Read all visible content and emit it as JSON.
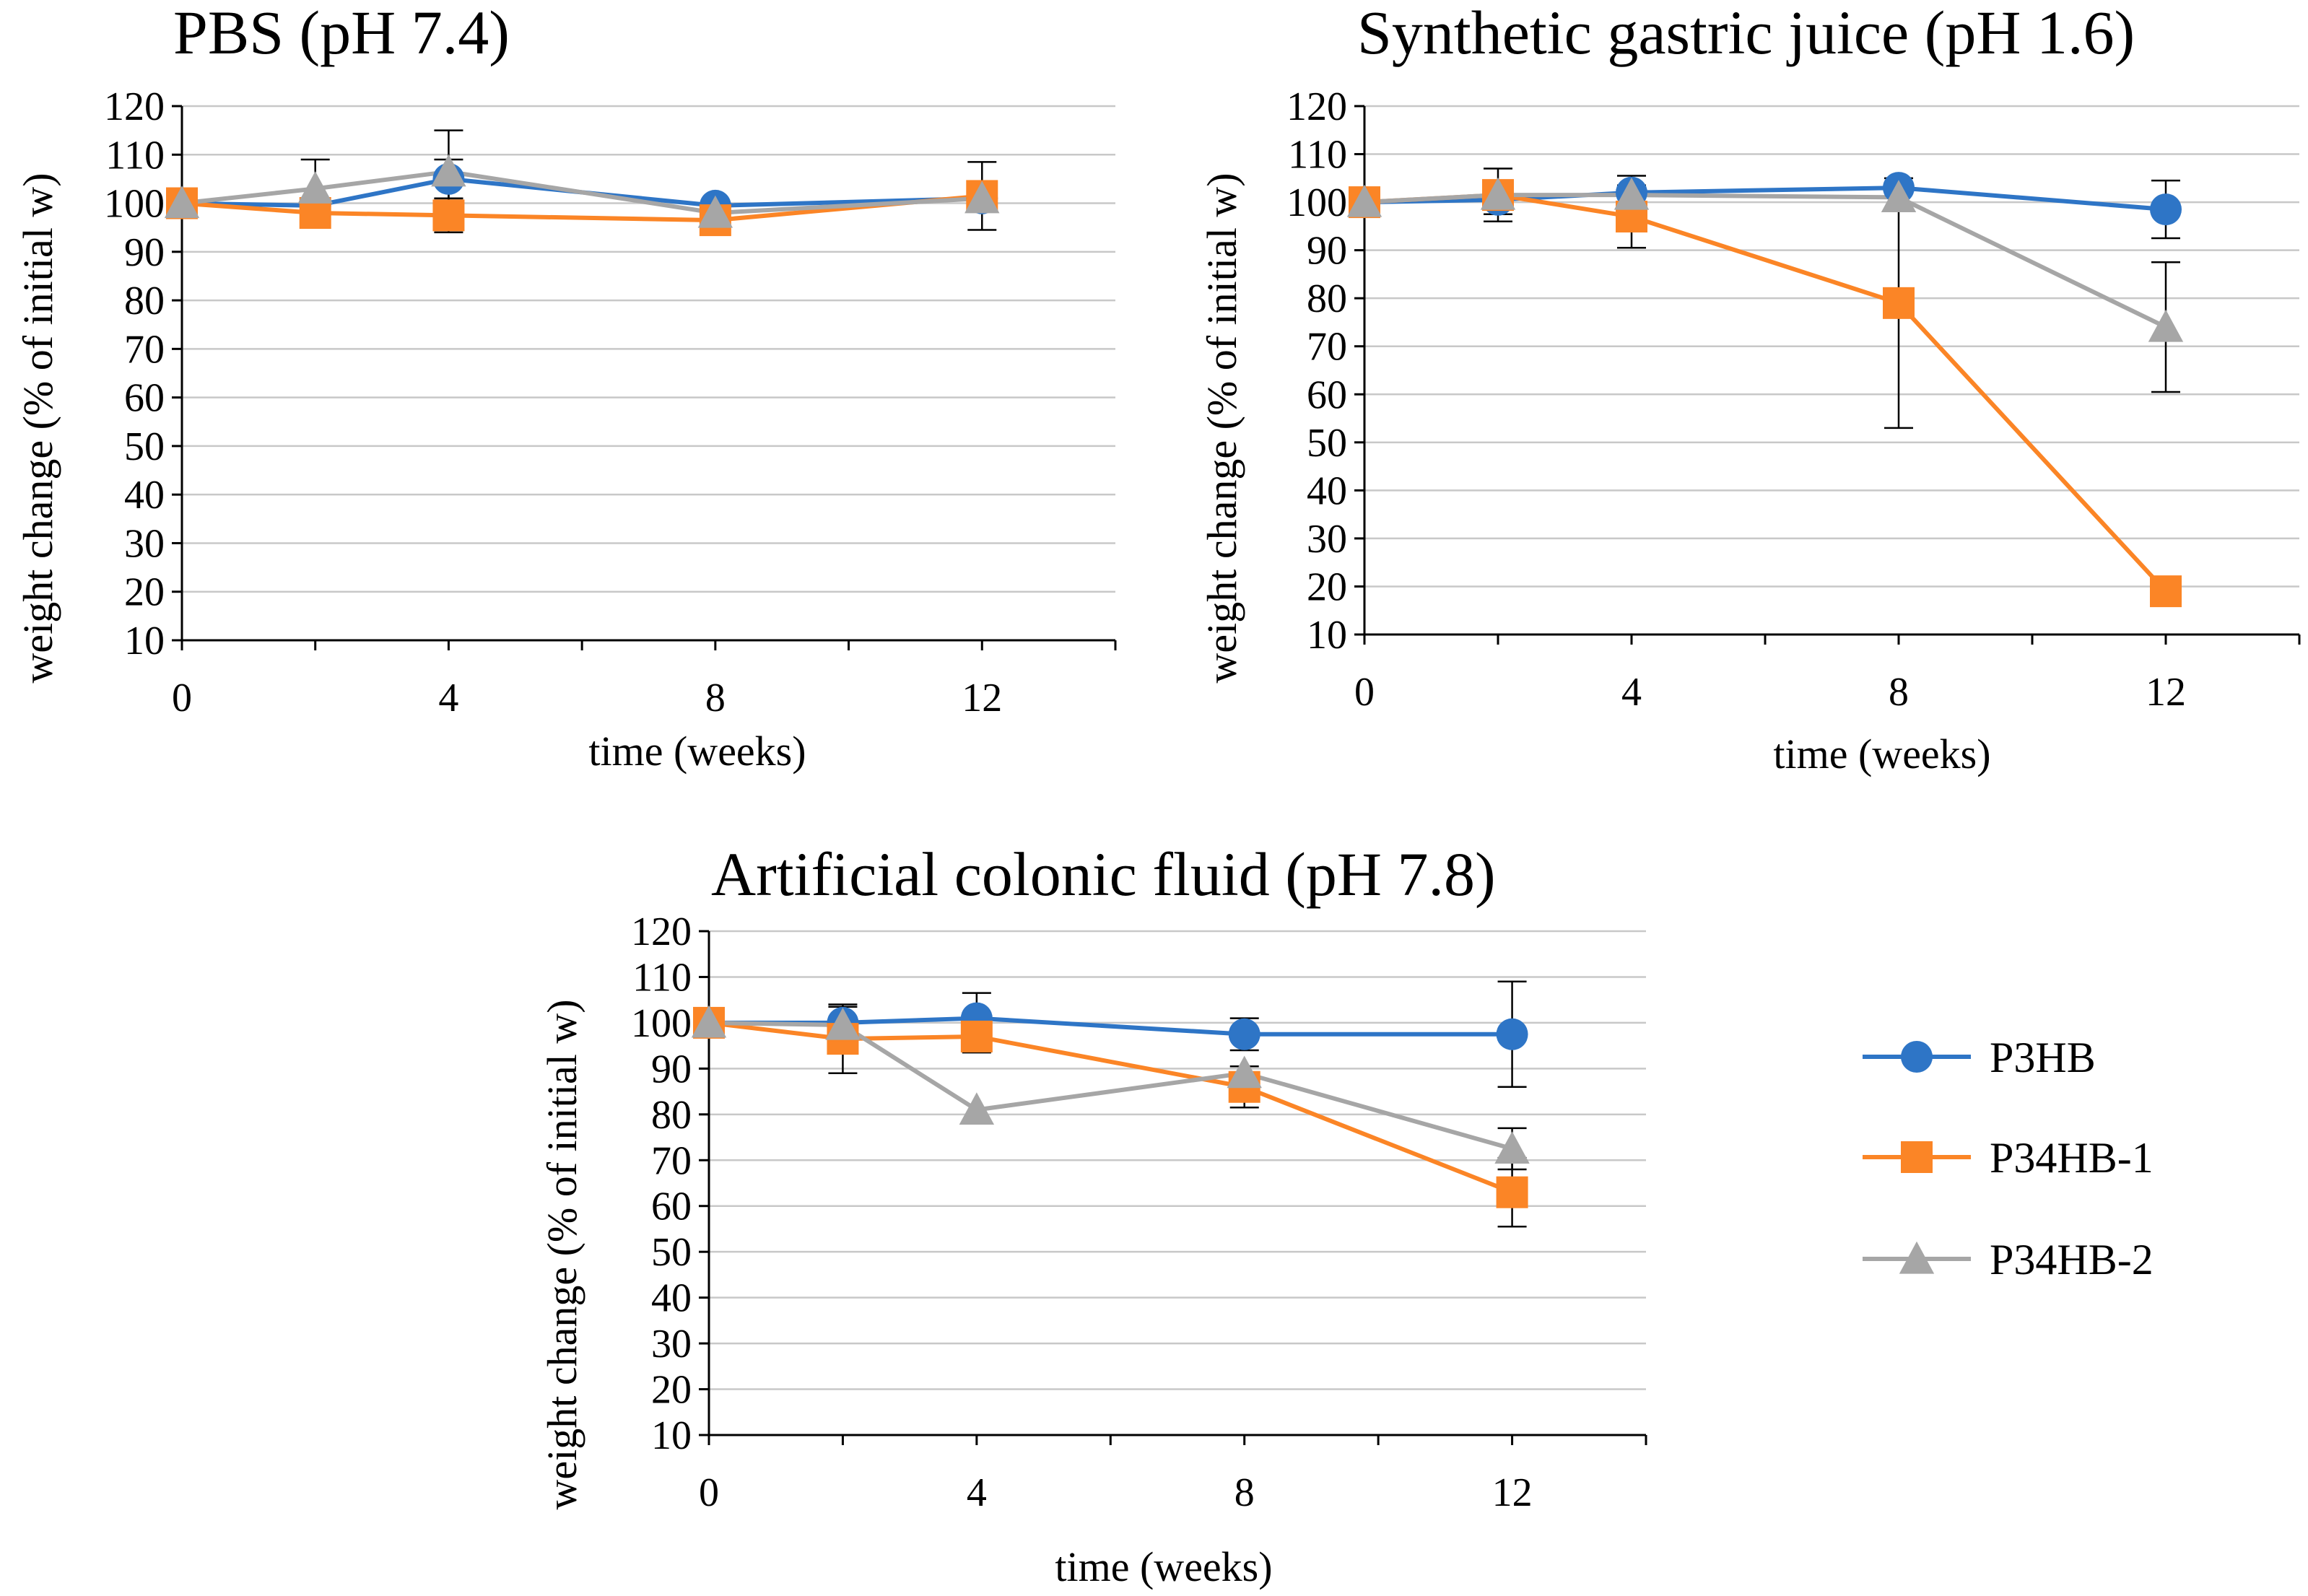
{
  "series_styles": [
    {
      "name": "P3HB",
      "color": "#2E75C6",
      "marker": "circle"
    },
    {
      "name": "P34HB-1",
      "color": "#FB8526",
      "marker": "square"
    },
    {
      "name": "P34HB-2",
      "color": "#A6A6A6",
      "marker": "triangle"
    }
  ],
  "legend": {
    "items": [
      "P3HB",
      "P34HB-1",
      "P34HB-2"
    ]
  },
  "chart_data": [
    {
      "type": "line",
      "title": "PBS (pH 7.4)",
      "xlabel": "time (weeks)",
      "ylabel": "weight change (% of initial w)",
      "xlim": [
        0,
        14
      ],
      "ylim": [
        10,
        120
      ],
      "xticks": [
        0,
        4,
        8,
        12
      ],
      "yticks": [
        10,
        20,
        30,
        40,
        50,
        60,
        70,
        80,
        90,
        100,
        110,
        120
      ],
      "grid": true,
      "series": [
        {
          "name": "P3HB",
          "x": [
            0,
            2,
            4,
            8,
            12
          ],
          "y": [
            100,
            99.5,
            105,
            99.5,
            101
          ],
          "err": [
            0,
            0,
            4,
            0,
            0
          ]
        },
        {
          "name": "P34HB-1",
          "x": [
            0,
            2,
            4,
            8,
            12
          ],
          "y": [
            100,
            98,
            97.5,
            96.5,
            101.5
          ],
          "err": [
            0,
            0,
            3.5,
            0,
            7
          ]
        },
        {
          "name": "P34HB-2",
          "x": [
            0,
            2,
            4,
            8,
            12
          ],
          "y": [
            100,
            103,
            106.5,
            98,
            101
          ],
          "err": [
            0,
            6,
            8.5,
            0,
            0
          ]
        }
      ]
    },
    {
      "type": "line",
      "title": "Synthetic gastric juice (pH 1.6)",
      "xlabel": "time (weeks)",
      "ylabel": "weight change (% of initial w)",
      "xlim": [
        0,
        14
      ],
      "ylim": [
        10,
        120
      ],
      "xticks": [
        0,
        4,
        8,
        12
      ],
      "yticks": [
        10,
        20,
        30,
        40,
        50,
        60,
        70,
        80,
        90,
        100,
        110,
        120
      ],
      "grid": true,
      "series": [
        {
          "name": "P3HB",
          "x": [
            0,
            2,
            4,
            8,
            12
          ],
          "y": [
            100,
            100.5,
            102,
            103,
            98.5
          ],
          "err": [
            0,
            3,
            3.5,
            0,
            6
          ]
        },
        {
          "name": "P34HB-1",
          "x": [
            0,
            2,
            4,
            8,
            12
          ],
          "y": [
            100,
            101.5,
            97,
            79,
            19
          ],
          "err": [
            0,
            5.5,
            6.5,
            26,
            0
          ]
        },
        {
          "name": "P34HB-2",
          "x": [
            0,
            2,
            4,
            8,
            12
          ],
          "y": [
            100,
            101.5,
            101.5,
            101,
            74
          ],
          "err": [
            0,
            0,
            0,
            0,
            13.5
          ]
        }
      ]
    },
    {
      "type": "line",
      "title": "Artificial colonic fluid (pH 7.8)",
      "xlabel": "time (weeks)",
      "ylabel": "weight change (% of initial w)",
      "xlim": [
        0,
        14
      ],
      "ylim": [
        10,
        120
      ],
      "xticks": [
        0,
        4,
        8,
        12
      ],
      "yticks": [
        10,
        20,
        30,
        40,
        50,
        60,
        70,
        80,
        90,
        100,
        110,
        120
      ],
      "grid": true,
      "series": [
        {
          "name": "P3HB",
          "x": [
            0,
            2,
            4,
            8,
            12
          ],
          "y": [
            100,
            100,
            101,
            97.5,
            97.5
          ],
          "err": [
            0,
            3.5,
            5.5,
            3.5,
            11.5
          ]
        },
        {
          "name": "P34HB-1",
          "x": [
            0,
            2,
            4,
            8,
            12
          ],
          "y": [
            100,
            96.5,
            97,
            86,
            63
          ],
          "err": [
            0,
            7.5,
            3.5,
            4.5,
            7.5
          ]
        },
        {
          "name": "P34HB-2",
          "x": [
            0,
            2,
            4,
            8,
            12
          ],
          "y": [
            100,
            99.5,
            81,
            89,
            72.5
          ],
          "err": [
            0,
            0,
            0,
            0,
            4.5
          ]
        }
      ]
    }
  ]
}
